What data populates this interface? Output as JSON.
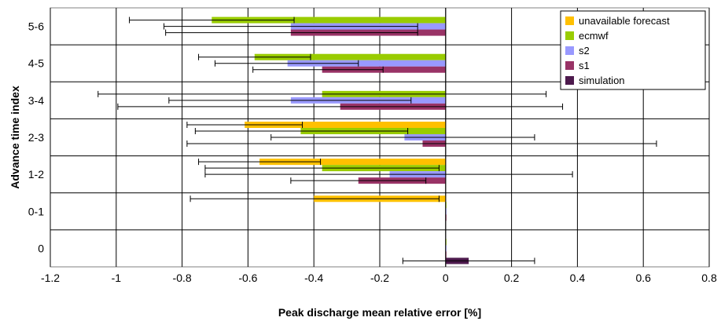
{
  "chart_data": {
    "type": "bar",
    "orientation": "horizontal",
    "title": "",
    "xlabel": "Peak discharge mean relative error [%]",
    "ylabel": "Advance time index",
    "xlim": [
      -1.2,
      0.8
    ],
    "xticks": [
      "-1.2",
      "-1",
      "-0.8",
      "-0.6",
      "-0.4",
      "-0.2",
      "0",
      "0.2",
      "0.4",
      "0.6",
      "0.8"
    ],
    "grid": "vertical",
    "legend_position": "top-right",
    "categories": [
      "0",
      "0-1",
      "1-2",
      "2-3",
      "3-4",
      "4-5",
      "5-6"
    ],
    "series": [
      {
        "name": "unavailable forecast",
        "color": "#FFC000",
        "values": [
          null,
          -0.4,
          -0.565,
          -0.61,
          null,
          null,
          null
        ],
        "err_low": [
          null,
          -0.775,
          -0.75,
          -0.785,
          null,
          null,
          null
        ],
        "err_high": [
          null,
          -0.02,
          -0.38,
          -0.435,
          null,
          null,
          null
        ]
      },
      {
        "name": "ecmwf",
        "color": "#99CC00",
        "values": [
          0,
          0,
          -0.375,
          -0.44,
          -0.375,
          -0.58,
          -0.71
        ],
        "err_low": [
          null,
          null,
          -0.73,
          -0.76,
          -1.055,
          -0.75,
          -0.96
        ],
        "err_high": [
          null,
          null,
          -0.02,
          -0.115,
          0.305,
          -0.41,
          -0.46
        ]
      },
      {
        "name": "s2",
        "color": "#9999FF",
        "values": [
          0,
          0,
          -0.17,
          -0.125,
          -0.47,
          -0.48,
          -0.47
        ],
        "err_low": [
          null,
          null,
          -0.73,
          -0.53,
          -0.84,
          -0.7,
          -0.855
        ],
        "err_high": [
          null,
          null,
          0.385,
          0.27,
          -0.105,
          -0.265,
          -0.085
        ]
      },
      {
        "name": "s1",
        "color": "#993366",
        "values": [
          0,
          0,
          -0.265,
          -0.07,
          -0.32,
          -0.375,
          -0.47
        ],
        "err_low": [
          null,
          null,
          -0.47,
          -0.785,
          -0.995,
          -0.585,
          -0.85
        ],
        "err_high": [
          null,
          null,
          -0.06,
          0.64,
          0.355,
          -0.19,
          -0.085
        ]
      },
      {
        "name": "simulation",
        "color": "#4D1A4D",
        "values": [
          0.07,
          null,
          null,
          null,
          null,
          null,
          null
        ],
        "err_low": [
          -0.13,
          null,
          null,
          null,
          null,
          null,
          null
        ],
        "err_high": [
          0.27,
          null,
          null,
          null,
          null,
          null,
          null
        ]
      }
    ]
  }
}
